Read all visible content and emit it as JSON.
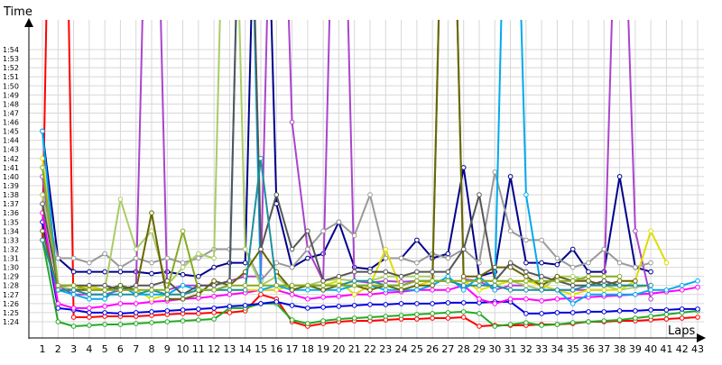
{
  "chart_data": {
    "type": "line",
    "ylabel": "Time",
    "xlabel": "Laps",
    "x": [
      1,
      2,
      3,
      4,
      5,
      6,
      7,
      8,
      9,
      10,
      11,
      12,
      13,
      14,
      15,
      16,
      17,
      18,
      19,
      20,
      21,
      22,
      23,
      24,
      25,
      26,
      27,
      28,
      29,
      30,
      31,
      32,
      33,
      34,
      35,
      36,
      37,
      38,
      39,
      40,
      41,
      42,
      43
    ],
    "x_tick_labels": [
      "1",
      "2",
      "3",
      "4",
      "5",
      "6",
      "7",
      "8",
      "9",
      "10",
      "11",
      "12",
      "13",
      "14",
      "15",
      "16",
      "17",
      "18",
      "19",
      "20",
      "21",
      "22",
      "23",
      "24",
      "25",
      "26",
      "27",
      "28",
      "29",
      "30",
      "31",
      "32",
      "33",
      "34",
      "35",
      "36",
      "37",
      "38",
      "39",
      "40",
      "41",
      "42",
      "43"
    ],
    "y_tick_labels": [
      "1:24",
      "1:25",
      "1:26",
      "1:27",
      "1:28",
      "1:29",
      "1:30",
      "1:31",
      "1:32",
      "1:33",
      "1:34",
      "1:35",
      "1:36",
      "1:37",
      "1:38",
      "1:39",
      "1:40",
      "1:41",
      "1:42",
      "1:43",
      "1:44",
      "1:45",
      "1:46",
      "1:47",
      "1:48",
      "1:49",
      "1:50",
      "1:51",
      "1:52",
      "1:53",
      "1:54"
    ],
    "y_unit": "seconds",
    "ylim": [
      83,
      156
    ],
    "xlim": [
      1,
      43
    ],
    "grid": true,
    "legend": "none",
    "series": [
      {
        "color": "#ff0000",
        "values": [
          93,
          190,
          84.5,
          84.5,
          84.6,
          84.6,
          84.6,
          84.7,
          84.8,
          84.9,
          84.9,
          85,
          85,
          85.2,
          87,
          86.5,
          84,
          83.5,
          83.8,
          84,
          84.1,
          84.1,
          84.2,
          84.3,
          84.3,
          84.4,
          84.4,
          84.5,
          83.5,
          83.6,
          83.6,
          83.6,
          83.7,
          83.7,
          83.8,
          84,
          84,
          84.1,
          84.1,
          84.2,
          84.3,
          84.4,
          84.5
        ]
      },
      {
        "color": "#22aa22",
        "values": [
          93,
          84,
          83.5,
          83.6,
          83.7,
          83.7,
          83.8,
          83.9,
          84,
          84.1,
          84.2,
          84.3,
          85.5,
          85.5,
          86,
          86,
          84.2,
          83.8,
          84.1,
          84.3,
          84.4,
          84.5,
          84.6,
          84.7,
          84.8,
          84.9,
          85,
          85.1,
          84.9,
          83.5,
          83.7,
          83.9,
          83.6,
          83.7,
          83.9,
          84,
          84.1,
          84.2,
          84.4,
          84.6,
          84.8,
          85,
          85.2
        ]
      },
      {
        "color": "#0000dd",
        "values": [
          95,
          85.5,
          85.3,
          85,
          85,
          84.9,
          85,
          85.1,
          85.2,
          85.3,
          85.4,
          85.5,
          85.7,
          85.8,
          86,
          86.2,
          85.8,
          85.5,
          85.6,
          85.7,
          85.8,
          85.9,
          85.9,
          86,
          86,
          86,
          86.1,
          86.1,
          86.1,
          86.2,
          86.2,
          84.9,
          84.9,
          85,
          85,
          85.1,
          85.1,
          85.2,
          85.2,
          85.3,
          85.3,
          85.4,
          85.4
        ]
      },
      {
        "color": "#00008b",
        "values": [
          105,
          91,
          89.5,
          89.5,
          89.5,
          89.5,
          89.5,
          89.3,
          89.5,
          89.2,
          89,
          90,
          90.5,
          90.5,
          160,
          97,
          90,
          91,
          91.5,
          95,
          90,
          89.8,
          91,
          91,
          93,
          91,
          91.5,
          101,
          89,
          89.5,
          100,
          90.5,
          90.5,
          90.3,
          92,
          89.5,
          89.5,
          100,
          90,
          89.5,
          null,
          null,
          null
        ]
      },
      {
        "color": "#ff00ff",
        "values": [
          96,
          86,
          85.5,
          85.5,
          85.7,
          86,
          86,
          86.2,
          86.3,
          86.5,
          86.6,
          86.8,
          87,
          87.2,
          87.5,
          87.5,
          87,
          86.5,
          86.7,
          86.8,
          87,
          87,
          87.2,
          87.3,
          87.5,
          87.5,
          87.5,
          88,
          86.5,
          86,
          86.5,
          86.5,
          86.3,
          86.5,
          86.6,
          86.7,
          86.8,
          86.9,
          87,
          87.1,
          87.3,
          87.5,
          87.8
        ]
      },
      {
        "color": "#aa44cc",
        "values": [
          100,
          88,
          87,
          87,
          87,
          87.5,
          87.5,
          160,
          87.5,
          88,
          88,
          88,
          88.5,
          89,
          89,
          160,
          106,
          92,
          88.5,
          160,
          88.5,
          88.3,
          88.5,
          88.4,
          88.5,
          88.5,
          160,
          88.7,
          88.5,
          87.5,
          88,
          88,
          87.5,
          87.5,
          87.5,
          87.5,
          87.5,
          147,
          94,
          86.5,
          null,
          null,
          null
        ]
      },
      {
        "color": "#999999",
        "values": [
          98,
          91,
          91,
          90.5,
          91.5,
          90,
          91,
          90.5,
          91,
          90.5,
          91,
          92,
          92,
          92,
          88.5,
          90.5,
          90,
          92,
          94,
          95,
          93.5,
          98,
          91,
          91,
          90.5,
          91.5,
          91,
          92,
          90.5,
          100.5,
          94,
          93,
          93,
          91,
          90,
          90.5,
          92,
          90.5,
          90,
          90.5,
          null,
          null,
          null
        ]
      },
      {
        "color": "#aacc66",
        "values": [
          98,
          88,
          87.5,
          88,
          87.5,
          97.5,
          92,
          94,
          88,
          90,
          91.5,
          91,
          160,
          92,
          88,
          89,
          87.5,
          88,
          88.5,
          88.7,
          88.5,
          88.5,
          89,
          89,
          89,
          89,
          160,
          88.5,
          88.5,
          88.5,
          88.5,
          88,
          87.5,
          89,
          89,
          88.5,
          88,
          87.5,
          87.8,
          88,
          null,
          null,
          null
        ]
      },
      {
        "color": "#dddd00",
        "values": [
          102,
          88,
          88,
          87.8,
          87.5,
          87.5,
          87.5,
          86.5,
          87,
          87,
          87.5,
          87.5,
          87.5,
          87.5,
          87.5,
          87.5,
          88,
          88,
          88,
          88.5,
          87,
          88,
          92,
          87.5,
          88,
          88.5,
          88.5,
          88.5,
          87.5,
          88,
          88.5,
          88.5,
          88,
          87.5,
          87,
          87.5,
          87.5,
          87.5,
          88.5,
          94,
          90.5,
          null,
          null
        ]
      },
      {
        "color": "#00aaee",
        "values": [
          105,
          87.5,
          87,
          86.5,
          86.5,
          88,
          87,
          87,
          87,
          88,
          87.5,
          87.5,
          88,
          160,
          87.5,
          88,
          87.5,
          87.5,
          87.5,
          87.5,
          88,
          88,
          87.5,
          87.5,
          87.5,
          88,
          89,
          87.5,
          89,
          87.5,
          160,
          98,
          87.5,
          87.5,
          86,
          87,
          87,
          87,
          87,
          87.5,
          87.5,
          88,
          88.5
        ]
      },
      {
        "color": "#666600",
        "values": [
          94,
          87.5,
          87.5,
          87.5,
          87.5,
          88,
          87.5,
          96,
          86.5,
          86.5,
          87,
          88.5,
          88,
          89.5,
          92,
          89.5,
          87.5,
          88,
          87.5,
          88,
          88,
          87.5,
          88,
          87.5,
          88,
          88,
          160,
          89,
          89,
          90,
          90,
          89,
          88,
          89,
          88.5,
          88.5,
          88,
          88.5,
          88.5,
          null,
          null,
          null,
          null
        ]
      },
      {
        "color": "#555555",
        "values": [
          97,
          88,
          88,
          88,
          88,
          87.5,
          88,
          88,
          88.5,
          87,
          88,
          88,
          88.5,
          160,
          92,
          98,
          92,
          94,
          88.5,
          89,
          89.5,
          89.5,
          89.5,
          89,
          89.5,
          89.5,
          89.5,
          92,
          98,
          88.5,
          90.5,
          89.5,
          89,
          88.5,
          88,
          88,
          88.5,
          88,
          88,
          null,
          null,
          null,
          null
        ]
      },
      {
        "color": "#1f8fa0",
        "values": [
          93,
          87.5,
          87.5,
          87,
          87,
          87,
          87,
          87.5,
          87,
          87,
          87.5,
          87.5,
          87.5,
          87.5,
          102,
          88,
          88,
          88,
          88,
          88,
          88.5,
          88.5,
          88,
          88,
          88.5,
          88.5,
          88.5,
          88,
          88,
          88,
          87.5,
          87.5,
          87.5,
          87.5,
          87.5,
          88,
          88,
          88,
          88,
          88,
          null,
          null,
          null
        ]
      },
      {
        "color": "#88aa22",
        "values": [
          101,
          88,
          88,
          87.5,
          87.5,
          87.5,
          87.5,
          87.5,
          87.5,
          94,
          87.5,
          87.5,
          88,
          88,
          88,
          88,
          88,
          88,
          88,
          88,
          88,
          88,
          88,
          88,
          88.5,
          88.5,
          88.5,
          88.5,
          88.5,
          88.5,
          88.5,
          88.5,
          88.5,
          88.5,
          88.5,
          89,
          89,
          89,
          null,
          null,
          null,
          null,
          null
        ]
      }
    ]
  }
}
